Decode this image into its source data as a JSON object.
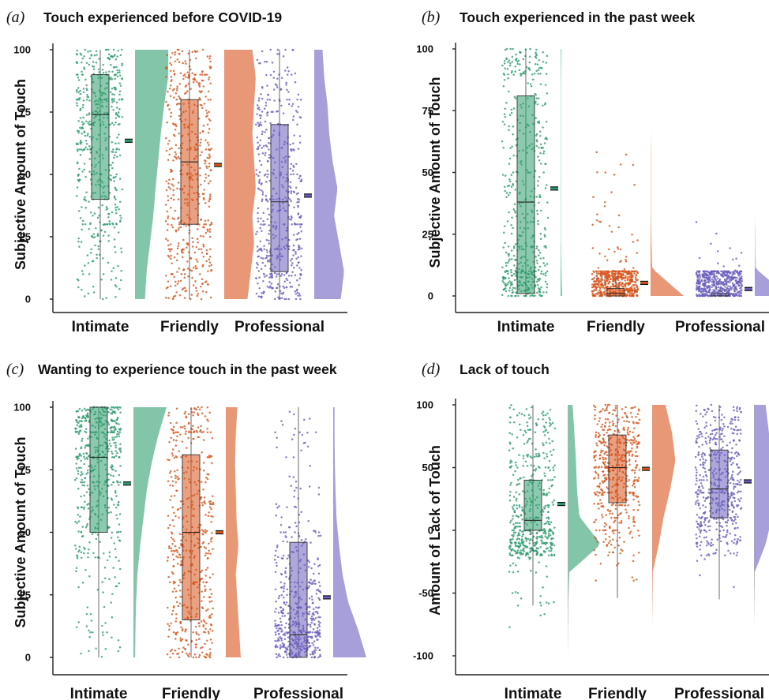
{
  "colors": {
    "intimate": "#2e9e6e",
    "friendly": "#d9541a",
    "professional": "#6a5fbf"
  },
  "chart_data": [
    {
      "type": "raincloud",
      "panel": "(a)",
      "title": "Touch experienced before COVID-19",
      "ylabel": "Subjective Amount of Touch",
      "xlabel": "",
      "ylim": [
        0,
        100
      ],
      "yticks": [
        0,
        25,
        50,
        75,
        100
      ],
      "categories": [
        "Intimate",
        "Friendly",
        "Professional"
      ],
      "box": [
        {
          "q1": 40,
          "median": 74,
          "q3": 90,
          "min": 0,
          "max": 100
        },
        {
          "q1": 30,
          "median": 55,
          "q3": 80,
          "min": 0,
          "max": 100
        },
        {
          "q1": 11,
          "median": 39,
          "q3": 70,
          "min": 0,
          "max": 100
        }
      ],
      "mean": [
        63.5,
        53.8,
        41.5
      ],
      "density": [
        [
          0.3,
          0.35,
          0.45,
          0.55,
          0.62,
          0.7,
          0.78,
          0.88,
          1.0,
          1.0
        ],
        [
          0.7,
          0.8,
          0.9,
          0.85,
          0.95,
          0.9,
          0.85,
          0.9,
          0.95,
          0.85
        ],
        [
          0.8,
          0.9,
          0.75,
          0.6,
          0.7,
          0.55,
          0.45,
          0.4,
          0.3,
          0.25
        ]
      ]
    },
    {
      "type": "raincloud",
      "panel": "(b)",
      "title": "Touch experienced in the past week",
      "ylabel": "Subjective Amount of Touch",
      "xlabel": "",
      "ylim": [
        0,
        100
      ],
      "yticks": [
        0,
        25,
        50,
        75,
        100
      ],
      "categories": [
        "Intimate",
        "Friendly",
        "Professional"
      ],
      "box": [
        {
          "q1": 1,
          "median": 38,
          "q3": 81,
          "min": 0,
          "max": 100
        },
        {
          "q1": 0,
          "median": 1,
          "q3": 3,
          "min": 0,
          "max": 8
        },
        {
          "q1": 0,
          "median": 0,
          "q3": 1,
          "min": 0,
          "max": 3
        }
      ],
      "mean": [
        43.5,
        5.3,
        2.8
      ],
      "density": [
        [
          0.05,
          0.02,
          0.01,
          0.01,
          0.01,
          0.01,
          0.01,
          0.01,
          0.01,
          0.02
        ],
        [
          1.0,
          0.05,
          0.02,
          0.01,
          0.01,
          0.01,
          0.0,
          0.0,
          0.0,
          0.0
        ],
        [
          1.0,
          0.02,
          0.01,
          0.0,
          0.0,
          0.0,
          0.0,
          0.0,
          0.0,
          0.0
        ]
      ]
    },
    {
      "type": "raincloud",
      "panel": "(c)",
      "title": "Wanting to experience touch in the past week",
      "ylabel": "Subjective Amount of Touch",
      "xlabel": "",
      "ylim": [
        0,
        100
      ],
      "yticks": [
        0,
        25,
        50,
        75,
        100
      ],
      "categories": [
        "Intimate",
        "Friendly",
        "Professional"
      ],
      "box": [
        {
          "q1": 50,
          "median": 80,
          "q3": 100,
          "min": 0,
          "max": 100
        },
        {
          "q1": 15,
          "median": 50,
          "q3": 81,
          "min": 0,
          "max": 100
        },
        {
          "q1": 0,
          "median": 9,
          "q3": 46,
          "min": 0,
          "max": 100
        }
      ],
      "mean": [
        69.5,
        50,
        24
      ],
      "density": [
        [
          0.05,
          0.06,
          0.08,
          0.12,
          0.2,
          0.3,
          0.4,
          0.55,
          0.75,
          1.0
        ],
        [
          0.45,
          0.4,
          0.35,
          0.3,
          0.38,
          0.32,
          0.3,
          0.28,
          0.3,
          0.35
        ],
        [
          1.0,
          0.75,
          0.45,
          0.28,
          0.18,
          0.1,
          0.07,
          0.05,
          0.04,
          0.04
        ]
      ]
    },
    {
      "type": "raincloud",
      "panel": "(d)",
      "title": "Lack of touch",
      "ylabel": "Amount of Lack of Touch",
      "xlabel": "",
      "ylim": [
        -100,
        100
      ],
      "yticks": [
        -100,
        -50,
        0,
        50,
        100
      ],
      "categories": [
        "Intimate",
        "Friendly",
        "Professional"
      ],
      "box": [
        {
          "q1": 0,
          "median": 8,
          "q3": 40,
          "min": -60,
          "max": 100
        },
        {
          "q1": 22,
          "median": 50,
          "q3": 76,
          "min": -54,
          "max": 100
        },
        {
          "q1": 10,
          "median": 33,
          "q3": 64,
          "min": -55,
          "max": 100
        }
      ],
      "mean": [
        21,
        49,
        39
      ],
      "density": [
        [
          0.0,
          0.01,
          0.02,
          0.05,
          1.0,
          0.35,
          0.28,
          0.25,
          0.2,
          0.15
        ],
        [
          0.0,
          0.0,
          0.01,
          0.02,
          0.2,
          0.35,
          0.55,
          0.7,
          0.6,
          0.4
        ],
        [
          0.0,
          0.0,
          0.01,
          0.02,
          0.35,
          0.55,
          0.6,
          0.55,
          0.45,
          0.35
        ]
      ]
    }
  ]
}
